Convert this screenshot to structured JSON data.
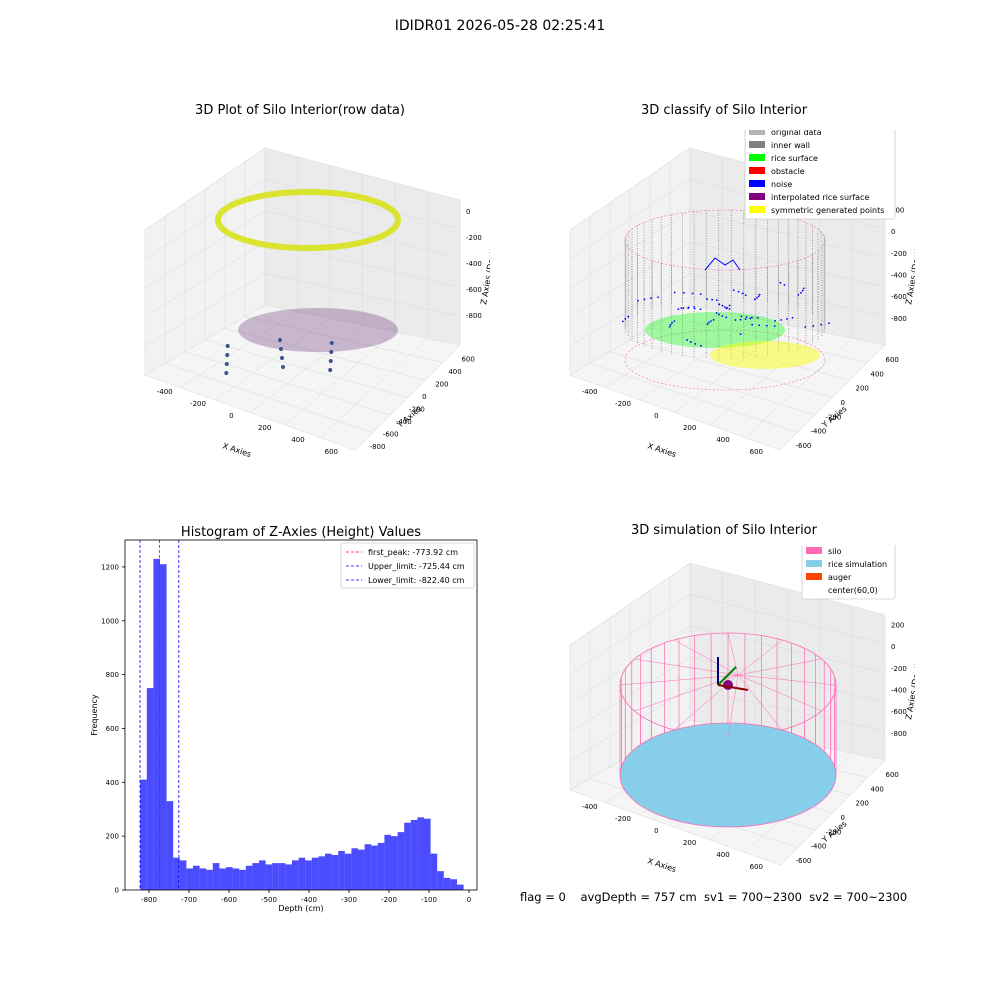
{
  "figure": {
    "suptitle": "IDIDR01 2026-05-28 02:25:41"
  },
  "panels": {
    "raw": {
      "title": "3D Plot of Silo Interior(row data)",
      "x_ticks": [
        "-400",
        "-200",
        "0",
        "200",
        "400",
        "600"
      ],
      "y_ticks": [
        "600",
        "400",
        "200",
        "0",
        "-200",
        "-400",
        "-600",
        "-800"
      ],
      "z_ticks": [
        "0",
        "-200",
        "-400",
        "-600",
        "-800"
      ],
      "xlabel": "X Axies",
      "ylabel": "Y Axies",
      "zlabel": "Z Axies (Depth)"
    },
    "classify": {
      "title": "3D classify of Silo Interior",
      "x_ticks": [
        "-400",
        "-200",
        "0",
        "200",
        "400",
        "600"
      ],
      "y_ticks": [
        "600",
        "400",
        "200",
        "0",
        "-200",
        "-400",
        "-600"
      ],
      "z_ticks": [
        "200",
        "0",
        "-200",
        "-400",
        "-600",
        "-800"
      ],
      "xlabel": "X Axies",
      "ylabel": "Y Axies",
      "zlabel": "Z Axies (Depth)",
      "legend": [
        {
          "label": "original data",
          "color": "#b3b3b3"
        },
        {
          "label": "inner wall",
          "color": "#808080"
        },
        {
          "label": "rice surface",
          "color": "#00ff00"
        },
        {
          "label": "obstacle",
          "color": "#ff0000"
        },
        {
          "label": "noise",
          "color": "#0000ff"
        },
        {
          "label": "interpolated rice surface",
          "color": "#800080"
        },
        {
          "label": "symmetric generated points",
          "color": "#ffff00"
        }
      ]
    },
    "simulation": {
      "title": "3D simulation of Silo Interior",
      "x_ticks": [
        "-400",
        "-200",
        "0",
        "200",
        "400",
        "600"
      ],
      "y_ticks": [
        "600",
        "400",
        "200",
        "0",
        "-200",
        "-400",
        "-600"
      ],
      "z_ticks": [
        "200",
        "0",
        "-200",
        "-400",
        "-600",
        "-800"
      ],
      "xlabel": "X Axies",
      "ylabel": "Y Axies",
      "zlabel": "Z Axies (Depth)",
      "legend": [
        {
          "label": "silo",
          "color": "#ff69b4"
        },
        {
          "label": "rice simulation",
          "color": "#87ceeb"
        },
        {
          "label": "auger",
          "color": "#ff4500"
        },
        {
          "label": "center(60,0)",
          "color": "#ffffff"
        }
      ]
    }
  },
  "footer": {
    "flag": "flag = 0",
    "avg": "avgDepth = 757 cm  sv1 = 700~2300  sv2 = 700~2300"
  },
  "chart_data": [
    {
      "type": "histogram",
      "title": "Histogram of Z-Axies (Height) Values",
      "xlabel": "Depth (cm)",
      "ylabel": "Frequency",
      "xlim": [
        -860,
        20
      ],
      "ylim": [
        0,
        1300
      ],
      "x_ticks": [
        -800,
        -700,
        -600,
        -500,
        -400,
        -300,
        -200,
        -100,
        0
      ],
      "y_ticks": [
        0,
        200,
        400,
        600,
        800,
        1000,
        1200
      ],
      "bar_color": "#0000ff",
      "bin_start": -822,
      "bin_width": 16.5,
      "values": [
        410,
        750,
        1230,
        1210,
        330,
        120,
        110,
        80,
        90,
        80,
        75,
        100,
        80,
        85,
        80,
        75,
        90,
        100,
        110,
        95,
        100,
        100,
        95,
        110,
        120,
        110,
        120,
        125,
        135,
        130,
        145,
        135,
        155,
        150,
        170,
        165,
        175,
        205,
        200,
        215,
        250,
        260,
        270,
        265,
        135,
        70,
        45,
        40,
        20
      ],
      "vlines": [
        {
          "label": "first_peak: -773.92 cm",
          "x": -773.92,
          "color": "#ff0000"
        },
        {
          "label": "Upper_limit: -725.44 cm",
          "x": -725.44,
          "color": "#0000ff"
        },
        {
          "label": "Lower_limit: -822.40 cm",
          "x": -822.4,
          "color": "#0000ff"
        }
      ]
    }
  ]
}
